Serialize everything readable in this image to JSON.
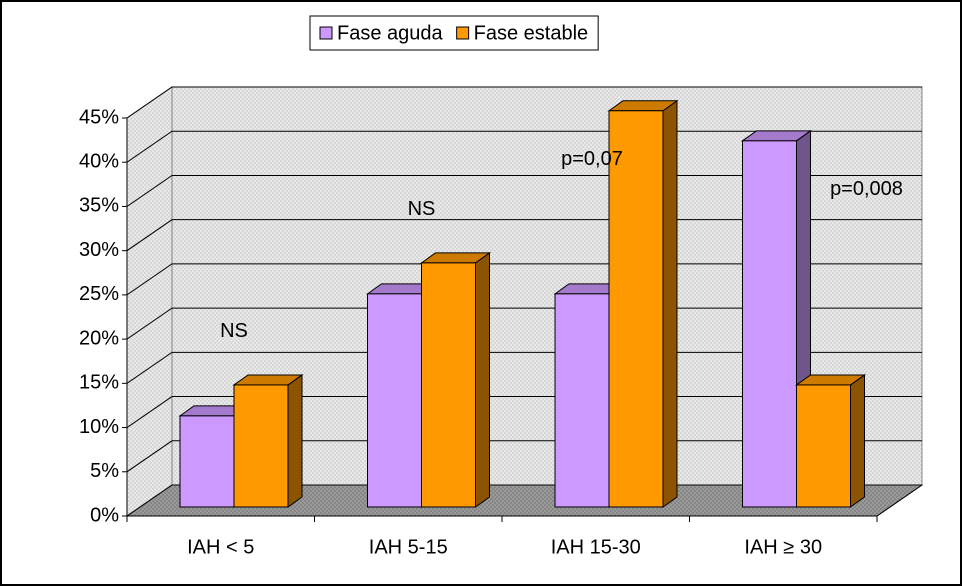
{
  "chart_data": {
    "type": "bar",
    "categories": [
      "IAH < 5",
      "IAH 5-15",
      "IAH 15-30",
      "IAH ≥ 30"
    ],
    "series": [
      {
        "name": "Fase aguda",
        "color": "#cc99ff",
        "values": [
          10.3,
          24.1,
          24.1,
          41.4
        ]
      },
      {
        "name": "Fase estable",
        "color": "#ff9900",
        "values": [
          13.8,
          27.6,
          44.8,
          13.8
        ]
      }
    ],
    "annotations": [
      "NS",
      "NS",
      "p=0,07",
      "p=0,008"
    ],
    "ylim": [
      0,
      45
    ],
    "yticks": [
      {
        "value": 0,
        "label": "0%"
      },
      {
        "value": 5,
        "label": "5%"
      },
      {
        "value": 10,
        "label": "10%"
      },
      {
        "value": 15,
        "label": "15%"
      },
      {
        "value": 20,
        "label": "20%"
      },
      {
        "value": 25,
        "label": "25%"
      },
      {
        "value": 30,
        "label": "30%"
      },
      {
        "value": 35,
        "label": "35%"
      },
      {
        "value": 40,
        "label": "40%"
      },
      {
        "value": 45,
        "label": "45%"
      }
    ],
    "grid": true,
    "legend": "top"
  }
}
